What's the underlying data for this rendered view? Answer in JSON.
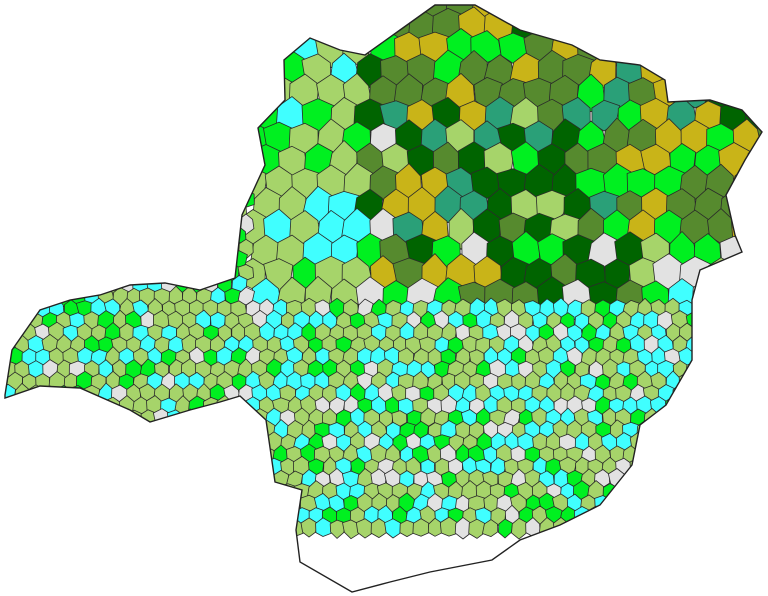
{
  "map": {
    "colors": {
      "light_gray": "#e2e2e2",
      "light_green": "#a6d46a",
      "cyan": "#40ffff",
      "bright_green": "#00f020",
      "dark_green": "#006400",
      "olive_green": "#568a2e",
      "gold": "#c9b418",
      "teal": "#2aa078"
    },
    "border_color": "#2a2a2a",
    "background": "#ffffff"
  }
}
